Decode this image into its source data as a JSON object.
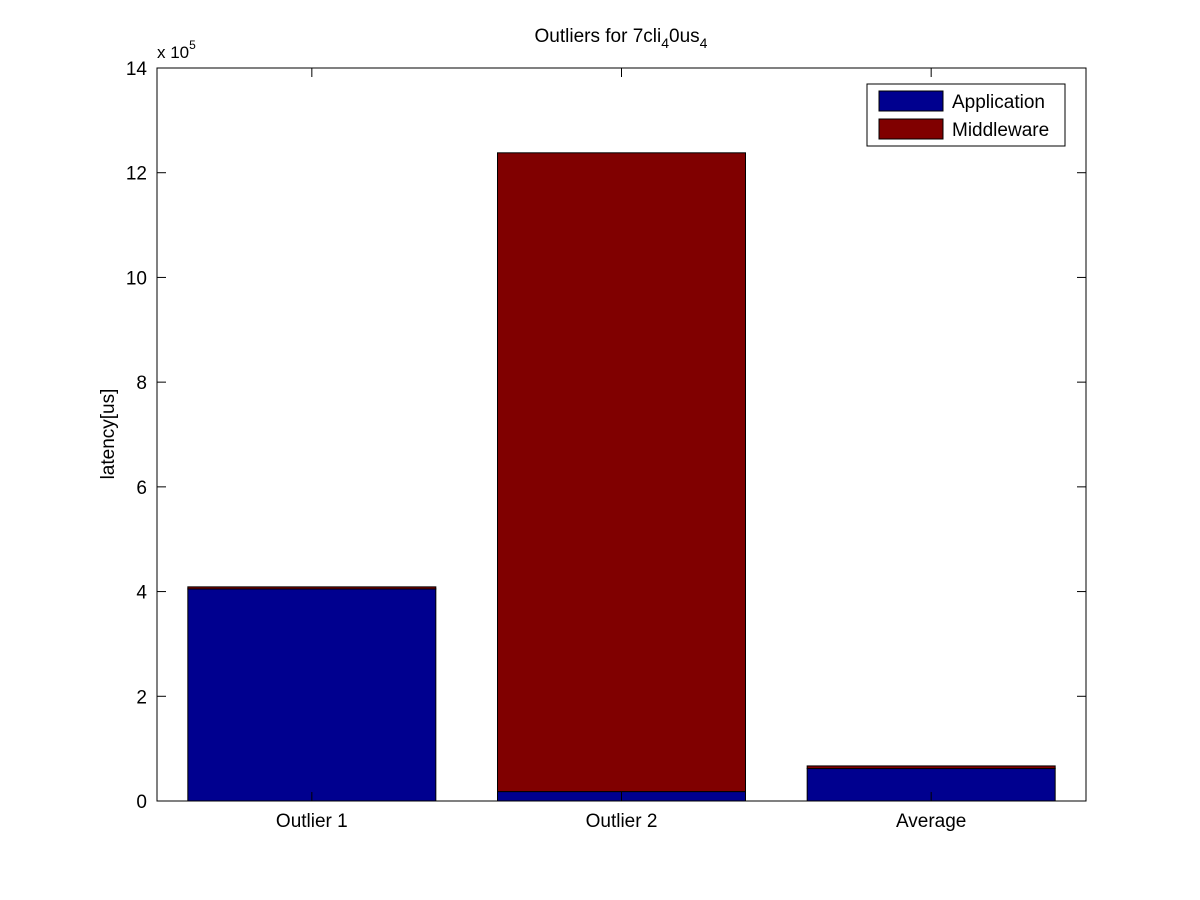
{
  "chart_data": {
    "type": "bar",
    "stacked": true,
    "title": {
      "prefix": "Outliers for 7cli",
      "sub1": "4",
      "middle": "0us",
      "sub2": "4"
    },
    "xlabel": "",
    "ylabel": "latency[us]",
    "y_scale_multiplier": {
      "text": "x 10",
      "exponent": "5"
    },
    "ylim": [
      0,
      14
    ],
    "yticks": [
      "0",
      "2",
      "4",
      "6",
      "8",
      "10",
      "12",
      "14"
    ],
    "categories": [
      "Outlier 1",
      "Outlier 2",
      "Average"
    ],
    "series": [
      {
        "name": "Application",
        "color": "#00008f",
        "values": [
          4.05,
          0.18,
          0.62
        ]
      },
      {
        "name": "Middleware",
        "color": "#800000",
        "values": [
          0.04,
          12.2,
          0.05
        ]
      }
    ],
    "legend": {
      "position": "top-right"
    },
    "grid": false
  }
}
